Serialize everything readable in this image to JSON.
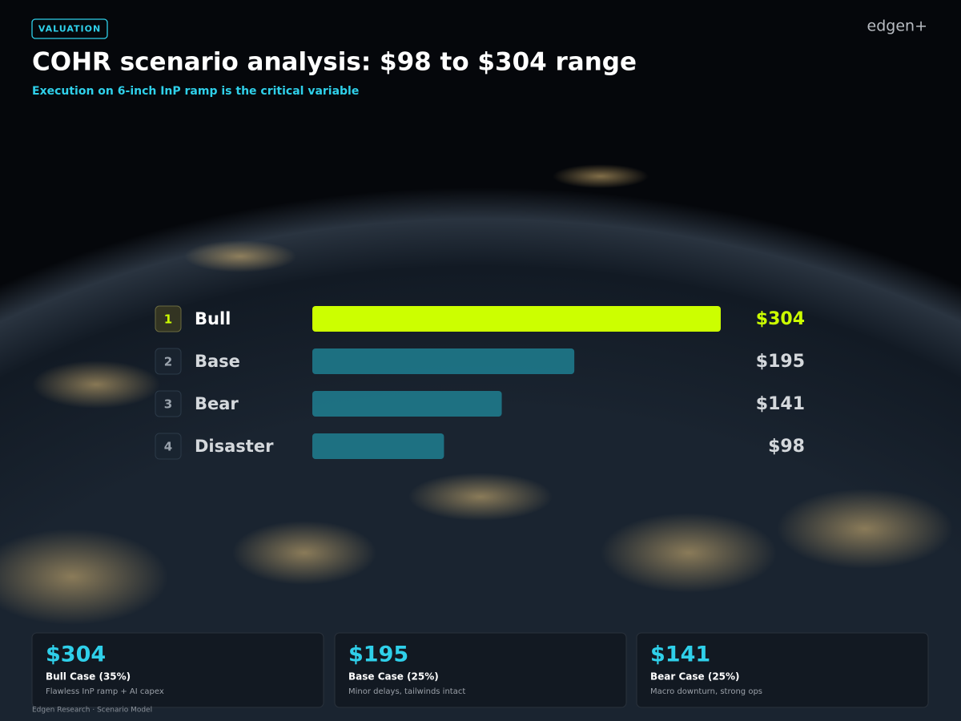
{
  "badge": "VALUATION",
  "logo": "edgen+",
  "chart_data": {
    "type": "bar",
    "orientation": "horizontal",
    "title": "COHR scenario analysis: $98 to $304 range",
    "subtitle": "Execution on 6-inch InP ramp is the critical variable",
    "ranks": [
      1,
      2,
      3,
      4
    ],
    "categories": [
      "Bull",
      "Base",
      "Bear",
      "Disaster"
    ],
    "values": [
      304,
      195,
      141,
      98
    ],
    "value_labels": [
      "$304",
      "$195",
      "$141",
      "$98"
    ],
    "colors": [
      "#ccff00",
      "#1f8497",
      "#1f8497",
      "#1f8497"
    ]
  },
  "cards": [
    {
      "value": "$304",
      "label": "Bull Case (35%)",
      "note": "Flawless InP ramp + AI capex"
    },
    {
      "value": "$195",
      "label": "Base Case (25%)",
      "note": "Minor delays, tailwinds intact"
    },
    {
      "value": "$141",
      "label": "Bear Case (25%)",
      "note": "Macro downturn, strong ops"
    }
  ],
  "footer": "Edgen Research · Scenario Model"
}
